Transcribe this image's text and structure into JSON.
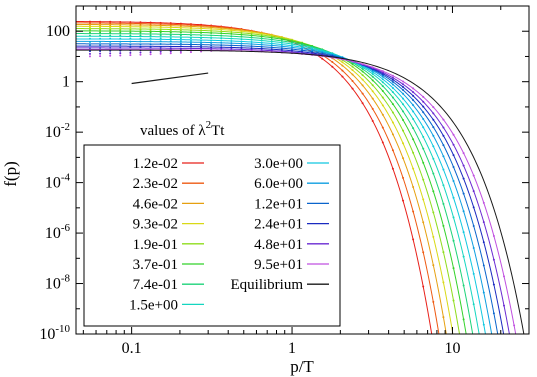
{
  "chart_data": {
    "type": "line",
    "title": "",
    "xlabel": "p/T",
    "ylabel": "f(p)",
    "xscale": "log",
    "yscale": "log",
    "xlim": [
      0.045,
      30
    ],
    "ylim": [
      1e-10,
      1000
    ],
    "x_ticks": [
      {
        "value": 0.1,
        "label": "0.1"
      },
      {
        "value": 1,
        "label": "1"
      },
      {
        "value": 10,
        "label": "10"
      }
    ],
    "y_ticks": [
      {
        "value": 100,
        "base": "100",
        "exp": ""
      },
      {
        "value": 1,
        "base": "1",
        "exp": ""
      },
      {
        "value": 0.01,
        "base": "10",
        "exp": "-2"
      },
      {
        "value": 0.0001,
        "base": "10",
        "exp": "-4"
      },
      {
        "value": 1e-06,
        "base": "10",
        "exp": "-6"
      },
      {
        "value": 1e-08,
        "base": "10",
        "exp": "-8"
      },
      {
        "value": 1e-10,
        "base": "10",
        "exp": "-10"
      }
    ],
    "legend_title": "values of λ²Tt",
    "legend_title_parts": {
      "pre": "values of λ",
      "sup": "2",
      "post": "Tt"
    },
    "legend_position": "bottom-left",
    "grid": false,
    "series": [
      {
        "name": "1.2e-02",
        "color": "#e8201a",
        "f0": 250,
        "q": 0.62,
        "t": 0.0
      },
      {
        "name": "2.3e-02",
        "color": "#ee5a12",
        "f0": 220,
        "q": 0.69,
        "t": 0.05
      },
      {
        "name": "4.6e-02",
        "color": "#e6a010",
        "f0": 190,
        "q": 0.77,
        "t": 0.1
      },
      {
        "name": "9.3e-02",
        "color": "#d9d916",
        "f0": 160,
        "q": 0.85,
        "t": 0.16
      },
      {
        "name": "1.9e-01",
        "color": "#8fdd1c",
        "f0": 130,
        "q": 0.94,
        "t": 0.22
      },
      {
        "name": "3.7e-01",
        "color": "#33d22a",
        "f0": 105,
        "q": 1.04,
        "t": 0.29
      },
      {
        "name": "7.4e-01",
        "color": "#1cd378",
        "f0": 82,
        "q": 1.15,
        "t": 0.36
      },
      {
        "name": "1.5e+00",
        "color": "#14d6c0",
        "f0": 64,
        "q": 1.27,
        "t": 0.44
      },
      {
        "name": "3.0e+00",
        "color": "#10c8e0",
        "f0": 50,
        "q": 1.4,
        "t": 0.52
      },
      {
        "name": "6.0e+00",
        "color": "#0e9ee0",
        "f0": 40,
        "q": 1.54,
        "t": 0.61
      },
      {
        "name": "1.2e+01",
        "color": "#0a64cc",
        "f0": 32,
        "q": 1.69,
        "t": 0.7
      },
      {
        "name": "2.4e+01",
        "color": "#1a2ac0",
        "f0": 26,
        "q": 1.85,
        "t": 0.8
      },
      {
        "name": "4.8e+01",
        "color": "#6a2ad2",
        "f0": 22,
        "q": 2.02,
        "t": 0.9
      },
      {
        "name": "9.5e+01",
        "color": "#c050e0",
        "f0": 19,
        "q": 2.22,
        "t": 1.0
      },
      {
        "name": "Equilibrium",
        "color": "#1a1a1a",
        "f0": 18,
        "q": 2.5,
        "t": 1.0
      }
    ],
    "reference_line": {
      "x": [
        0.1,
        0.3
      ],
      "y": [
        0.85,
        2.2
      ],
      "color": "#1a1a1a"
    }
  }
}
